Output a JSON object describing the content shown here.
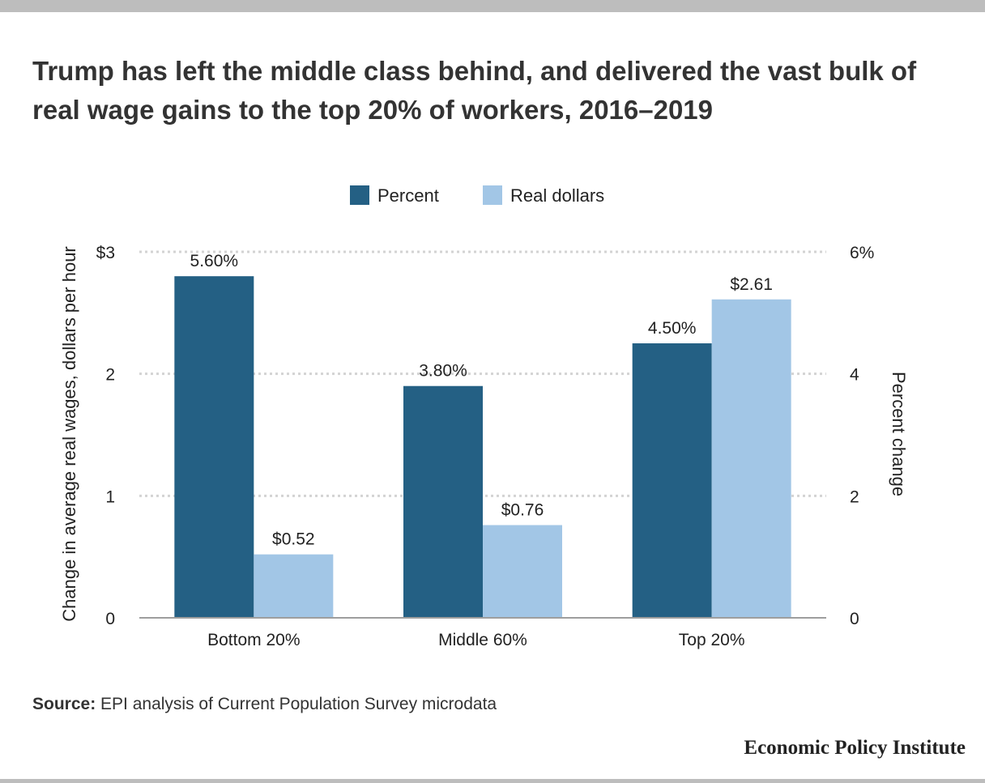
{
  "title": "Trump has left the middle class behind, and delivered the vast bulk of real wage gains to the top 20% of workers, 2016–2019",
  "source_label": "Source:",
  "source_text": "EPI analysis of Current Population Survey microdata",
  "brand": "Economic Policy Institute",
  "colors": {
    "percent": "#246084",
    "real_dollars": "#a2c6e6",
    "grid": "#d3d3d3",
    "baseline": "#9e9e9e"
  },
  "chart_data": {
    "type": "bar",
    "categories": [
      "Bottom 20%",
      "Middle 60%",
      "Top 20%"
    ],
    "series": [
      {
        "name": "Percent",
        "axis": "right",
        "values": [
          5.6,
          3.8,
          4.5
        ],
        "labels": [
          "5.60%",
          "3.80%",
          "4.50%"
        ]
      },
      {
        "name": "Real dollars",
        "axis": "left",
        "values": [
          0.52,
          0.76,
          2.61
        ],
        "labels": [
          "$0.52",
          "$0.76",
          "$2.61"
        ]
      }
    ],
    "left_axis": {
      "label": "Change in average real wages, dollars per hour",
      "range": [
        0,
        3
      ],
      "ticks": [
        0,
        1,
        2,
        3
      ],
      "tick_labels": [
        "0",
        "1",
        "2",
        "$3"
      ]
    },
    "right_axis": {
      "label": "Percent change",
      "range": [
        0,
        6
      ],
      "ticks": [
        0,
        2,
        4,
        6
      ],
      "tick_labels": [
        "0",
        "2",
        "4",
        "6%"
      ]
    },
    "grid": true,
    "legend": "top-center"
  }
}
